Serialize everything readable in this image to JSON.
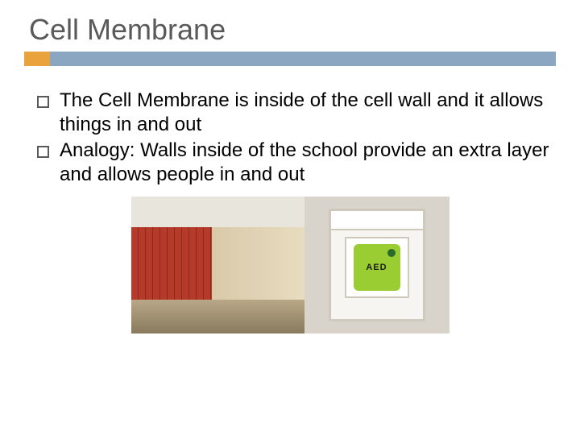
{
  "title": "Cell Membrane",
  "accent": {
    "orange": "#e8a33d",
    "blue": "#8aa6c1"
  },
  "bullets": [
    "The Cell Membrane is inside of the cell wall and it allows things in and out",
    "Analogy: Walls inside of the school provide an extra layer and allows people in and out"
  ],
  "images": {
    "hallway_alt": "school-hallway-lockers",
    "aed_alt": "aed-cabinet",
    "aed_label": "AED"
  }
}
